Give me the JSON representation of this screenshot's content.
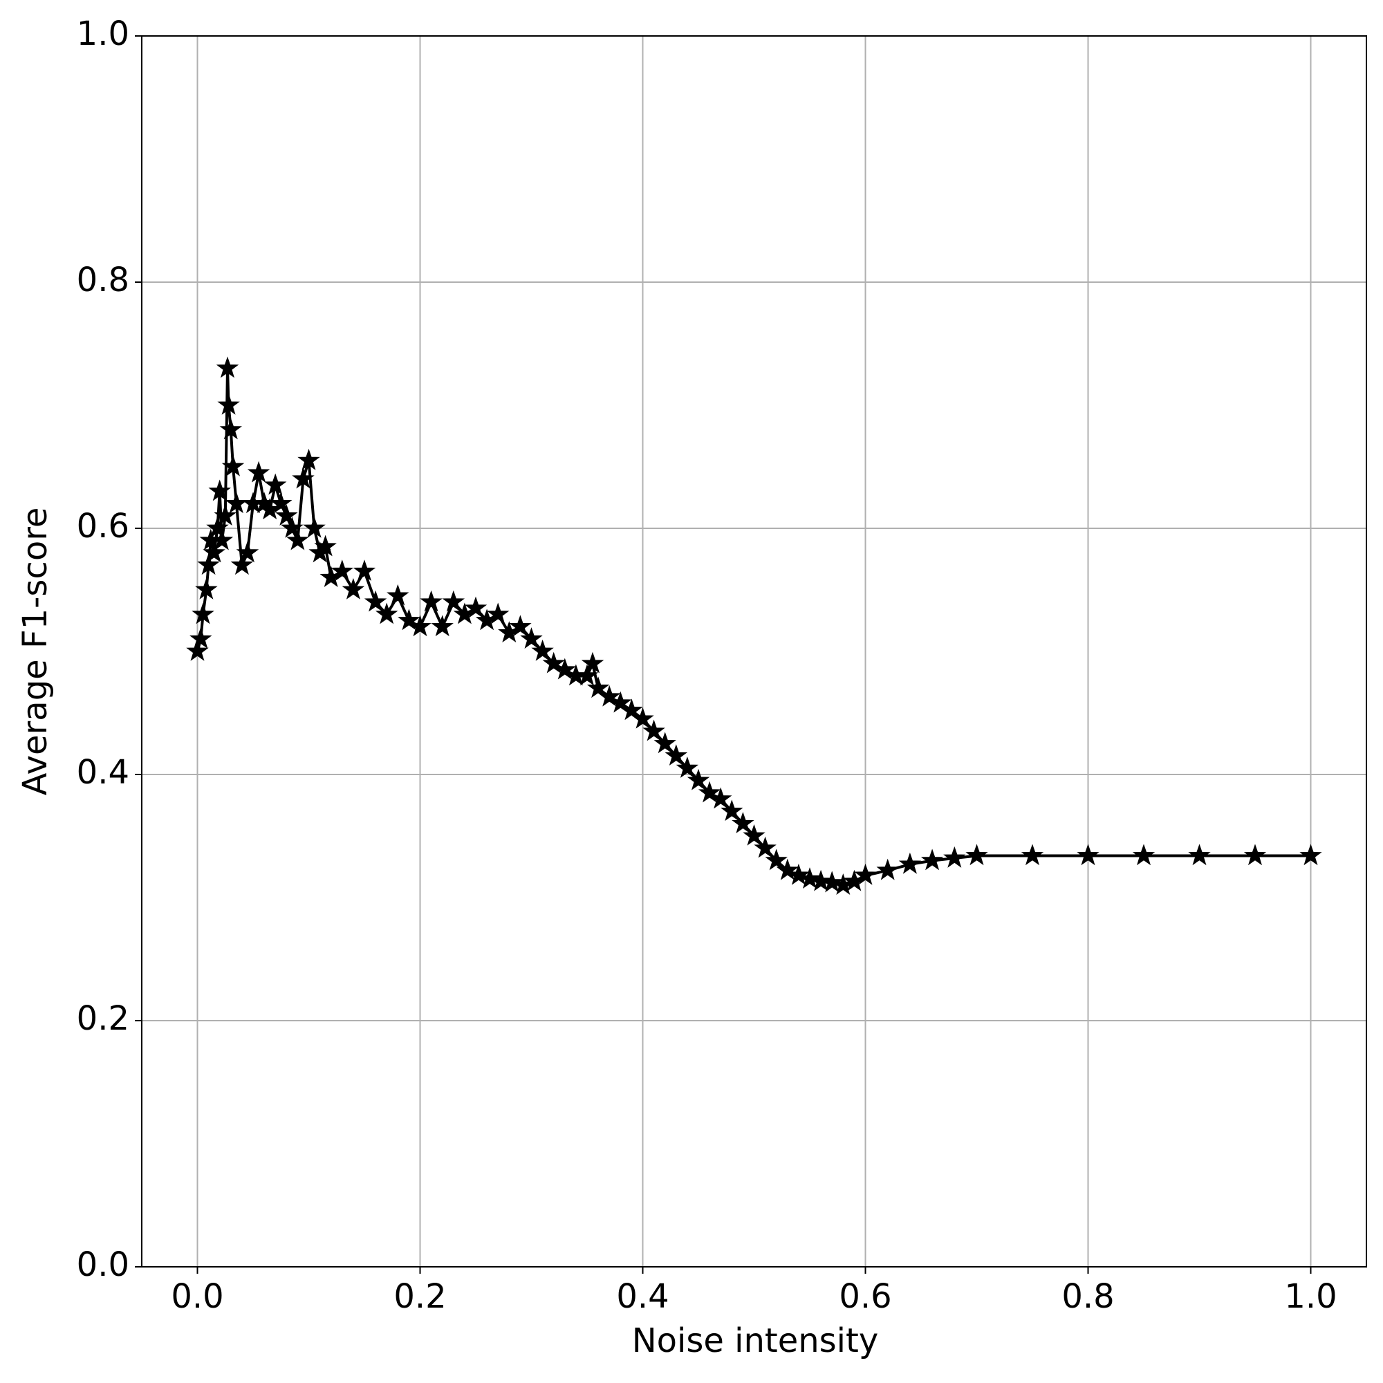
{
  "chart_data": {
    "type": "line",
    "xlabel": "Noise intensity",
    "ylabel": "Average F1-score",
    "xlim": [
      -0.05,
      1.05
    ],
    "ylim": [
      0,
      1
    ],
    "xticks": [
      {
        "value": 0,
        "label": "0.0"
      },
      0.2,
      0.4,
      0.6,
      0.8,
      {
        "value": 1,
        "label": "1.0"
      }
    ],
    "yticks": [
      {
        "value": 0,
        "label": "0.0"
      },
      0.2,
      0.4,
      0.6,
      0.8,
      {
        "value": 1,
        "label": "1.0"
      }
    ],
    "grid": true,
    "marker": "star",
    "series": [
      {
        "color": "#000000",
        "x": [
          0.0,
          0.003,
          0.005,
          0.008,
          0.01,
          0.012,
          0.015,
          0.018,
          0.02,
          0.022,
          0.025,
          0.027,
          0.028,
          0.03,
          0.032,
          0.035,
          0.04,
          0.045,
          0.05,
          0.055,
          0.06,
          0.065,
          0.07,
          0.075,
          0.08,
          0.085,
          0.09,
          0.095,
          0.1,
          0.105,
          0.11,
          0.115,
          0.12,
          0.13,
          0.14,
          0.15,
          0.16,
          0.17,
          0.18,
          0.19,
          0.2,
          0.21,
          0.22,
          0.23,
          0.24,
          0.25,
          0.26,
          0.27,
          0.28,
          0.29,
          0.3,
          0.31,
          0.32,
          0.33,
          0.34,
          0.35,
          0.355,
          0.36,
          0.37,
          0.38,
          0.39,
          0.4,
          0.41,
          0.42,
          0.43,
          0.44,
          0.45,
          0.46,
          0.47,
          0.48,
          0.49,
          0.5,
          0.51,
          0.52,
          0.53,
          0.54,
          0.55,
          0.56,
          0.57,
          0.58,
          0.59,
          0.6,
          0.62,
          0.64,
          0.66,
          0.68,
          0.7,
          0.75,
          0.8,
          0.85,
          0.9,
          0.95,
          1.0
        ],
        "values": [
          0.5,
          0.51,
          0.53,
          0.55,
          0.57,
          0.59,
          0.58,
          0.6,
          0.63,
          0.59,
          0.61,
          0.73,
          0.7,
          0.68,
          0.65,
          0.62,
          0.57,
          0.58,
          0.62,
          0.645,
          0.62,
          0.615,
          0.635,
          0.62,
          0.61,
          0.6,
          0.59,
          0.64,
          0.655,
          0.6,
          0.58,
          0.585,
          0.56,
          0.565,
          0.55,
          0.565,
          0.54,
          0.53,
          0.545,
          0.525,
          0.52,
          0.54,
          0.52,
          0.54,
          0.53,
          0.535,
          0.525,
          0.53,
          0.515,
          0.52,
          0.51,
          0.5,
          0.49,
          0.485,
          0.48,
          0.48,
          0.49,
          0.47,
          0.463,
          0.458,
          0.452,
          0.445,
          0.435,
          0.425,
          0.415,
          0.405,
          0.395,
          0.385,
          0.38,
          0.37,
          0.36,
          0.35,
          0.34,
          0.33,
          0.322,
          0.318,
          0.315,
          0.313,
          0.312,
          0.31,
          0.313,
          0.318,
          0.322,
          0.327,
          0.33,
          0.332,
          0.334,
          0.334,
          0.334,
          0.334,
          0.334,
          0.334,
          0.334
        ]
      }
    ]
  }
}
